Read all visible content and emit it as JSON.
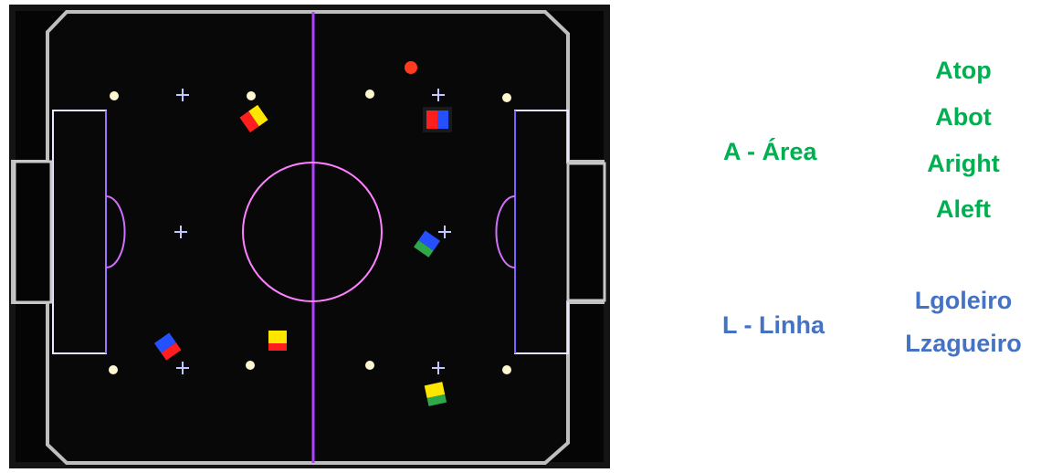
{
  "area": {
    "title": "A - Área",
    "subcategories": [
      "Atop",
      "Abot",
      "Aright",
      "Aleft"
    ],
    "color": "#00b050"
  },
  "linha": {
    "title": "L - Linha",
    "subcategories": [
      "Lgoleiro",
      "Lzagueiro"
    ],
    "color": "#4472c4"
  },
  "field": {
    "background": "#050505",
    "line_color": "#cfcfcf",
    "center_line_color": "#b040ff",
    "ball_color": "#ff3b1f",
    "robots": [
      {
        "team_color": "#ff1e1e",
        "id_color": "#ffe600"
      },
      {
        "team_color": "#ff1e1e",
        "id_color": "#2550ff"
      },
      {
        "team_color": "#2550ff",
        "id_color": "#2fa84a"
      },
      {
        "team_color": "#2550ff",
        "id_color": "#ff1e1e"
      },
      {
        "team_color": "#ffe600",
        "id_color": "#ff1e1e"
      },
      {
        "team_color": "#ffe600",
        "id_color": "#2fa84a"
      }
    ]
  }
}
